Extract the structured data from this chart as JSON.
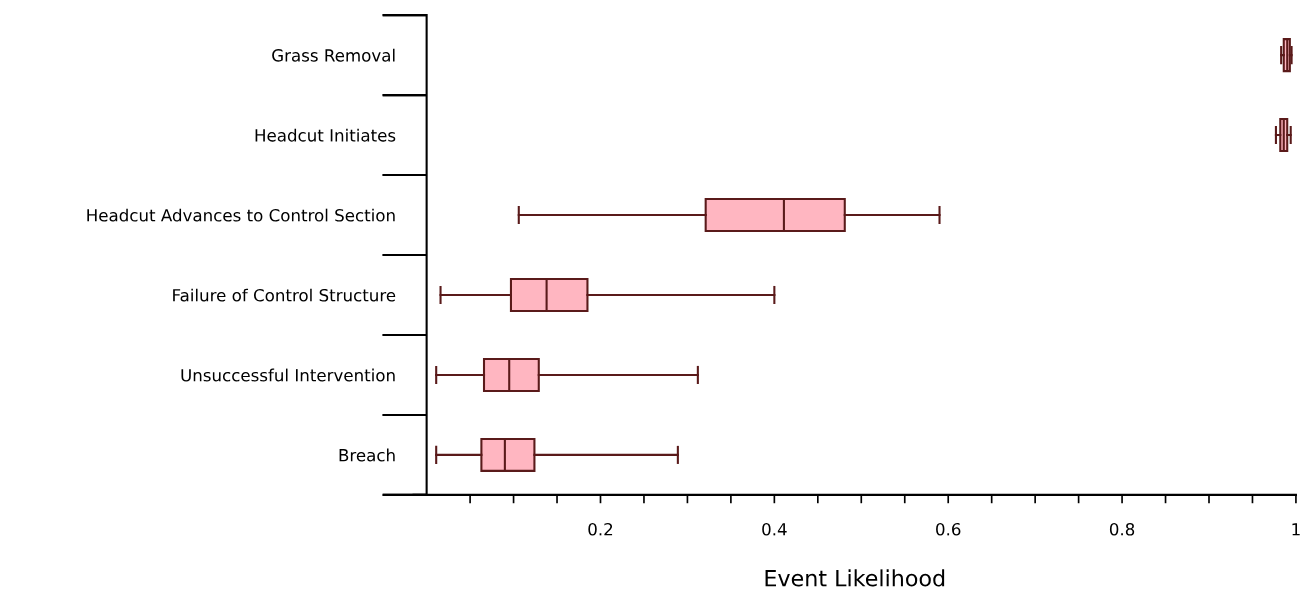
{
  "chart_data": {
    "type": "box",
    "orientation": "horizontal",
    "xlabel": "Event Likelihood",
    "categories": [
      "Grass Removal",
      "Headcut Initiates",
      "Headcut Advances to Control Section",
      "Failure of Control Structure",
      "Unsuccessful Intervention",
      "Breach"
    ],
    "boxes": [
      {
        "low": 0.983,
        "q1": 0.986,
        "median": 0.99,
        "q3": 0.993,
        "high": 0.995
      },
      {
        "low": 0.977,
        "q1": 0.982,
        "median": 0.986,
        "q3": 0.99,
        "high": 0.994
      },
      {
        "low": 0.106,
        "q1": 0.321,
        "median": 0.411,
        "q3": 0.481,
        "high": 0.59
      },
      {
        "low": 0.016,
        "q1": 0.097,
        "median": 0.138,
        "q3": 0.185,
        "high": 0.4
      },
      {
        "low": 0.011,
        "q1": 0.066,
        "median": 0.095,
        "q3": 0.129,
        "high": 0.312
      },
      {
        "low": 0.011,
        "q1": 0.063,
        "median": 0.09,
        "q3": 0.124,
        "high": 0.289
      }
    ],
    "color": "#ffb6c1",
    "xlim": [
      -0.015,
      1.0
    ],
    "xticks": [
      {
        "value": 0.05,
        "label": null
      },
      {
        "value": 0.1,
        "label": null
      },
      {
        "value": 0.15,
        "label": null
      },
      0.2,
      {
        "value": 0.25,
        "label": null
      },
      {
        "value": 0.3,
        "label": null
      },
      {
        "value": 0.35,
        "label": null
      },
      0.4,
      {
        "value": 0.45,
        "label": null
      },
      {
        "value": 0.5,
        "label": null
      },
      {
        "value": 0.55,
        "label": null
      },
      0.6,
      {
        "value": 0.65,
        "label": null
      },
      {
        "value": 0.7,
        "label": null
      },
      {
        "value": 0.75,
        "label": null
      },
      0.8,
      {
        "value": 0.85,
        "label": null
      },
      {
        "value": 0.9,
        "label": null
      },
      {
        "value": 0.95,
        "label": null
      },
      1
    ],
    "grid": false,
    "legend": false
  }
}
